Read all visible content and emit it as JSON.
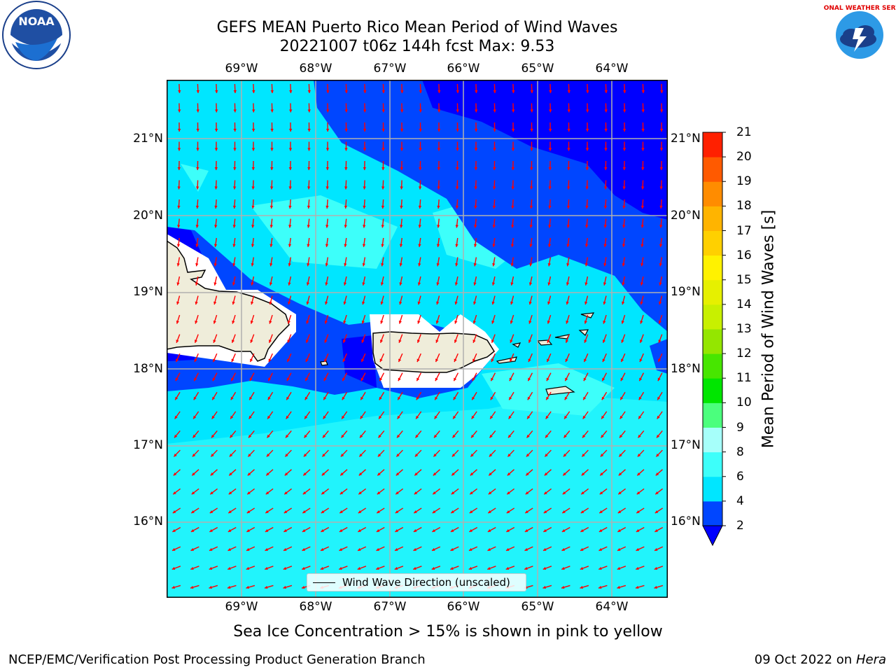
{
  "title": {
    "line1": "GEFS MEAN Puerto Rico Mean Period of Wind Waves",
    "line2": "20221007 t06z 144h fcst   Max: 9.53"
  },
  "logos": {
    "left": "noaa-logo",
    "right": "national-weather-service-logo",
    "left_text": "NOAA",
    "right_text": "NATIONAL WEATHER SERVICE"
  },
  "map": {
    "lon_labels": [
      "69°W",
      "68°W",
      "67°W",
      "66°W",
      "65°W",
      "64°W"
    ],
    "lat_labels": [
      "21°N",
      "20°N",
      "19°N",
      "18°N",
      "17°N",
      "16°N"
    ],
    "legend_label": "Wind Wave Direction (unscaled)",
    "arrow_color": "#ff0000"
  },
  "colorbar": {
    "label": "Mean Period of Wind Waves [s]",
    "ticks": [
      "2",
      "4",
      "6",
      "8",
      "9",
      "10",
      "11",
      "12",
      "13",
      "14",
      "15",
      "16",
      "17",
      "18",
      "19",
      "20",
      "21"
    ],
    "colors": [
      "#0046ff",
      "#00e6ff",
      "#3dfffa",
      "#a6fffa",
      "#4bff7d",
      "#00e600",
      "#47e600",
      "#94e600",
      "#c8f000",
      "#e6f000",
      "#fff200",
      "#ffd000",
      "#ffb400",
      "#ff8c00",
      "#ff5a00",
      "#ff2000"
    ],
    "under_color": "#0000ff"
  },
  "footer": {
    "note": "Sea Ice Concentration > 15% is shown in pink to yellow",
    "left": "NCEP/EMC/Verification Post Processing Product Generation Branch",
    "right_date": "09 Oct 2022 on ",
    "right_host": "Hera"
  }
}
